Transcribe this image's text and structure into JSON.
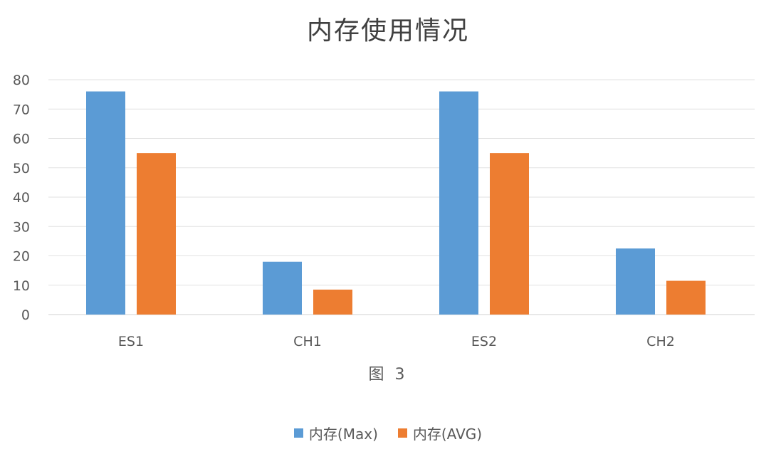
{
  "chart_data": {
    "type": "bar",
    "title": "内存使用情况",
    "xlabel": "图 3",
    "ylabel": "",
    "categories": [
      "ES1",
      "CH1",
      "ES2",
      "CH2"
    ],
    "series": [
      {
        "name": "内存(Max)",
        "color": "#5B9BD5",
        "values": [
          76,
          18,
          76,
          22.5
        ]
      },
      {
        "name": "内存(AVG)",
        "color": "#ED7D31",
        "values": [
          55,
          8.5,
          55,
          11.5
        ]
      }
    ],
    "ylim": [
      0,
      80
    ],
    "yticks": [
      0,
      10,
      20,
      30,
      40,
      50,
      60,
      70,
      80
    ],
    "grid": true,
    "legend_position": "bottom"
  }
}
